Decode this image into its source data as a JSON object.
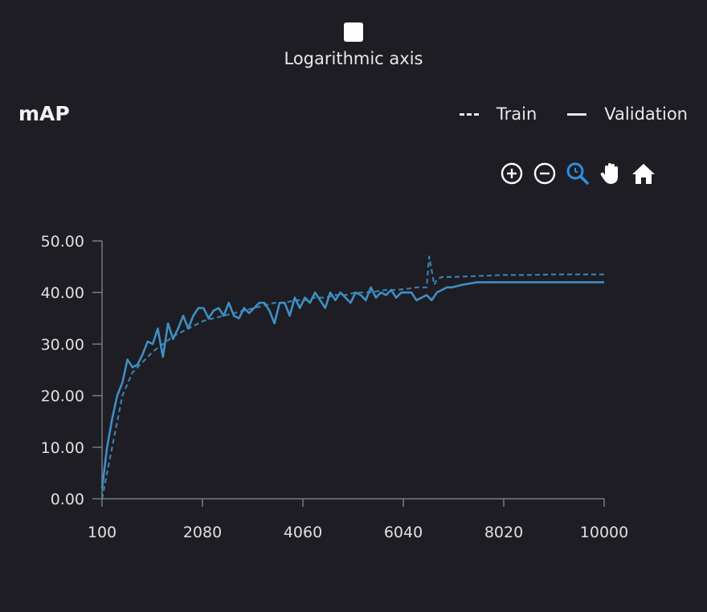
{
  "log_axis": {
    "label": "Logarithmic axis",
    "checked": false
  },
  "title": "mAP",
  "legend": [
    {
      "name": "Train",
      "style": "dashed"
    },
    {
      "name": "Validation",
      "style": "solid"
    }
  ],
  "toolbar": [
    {
      "name": "zoom-in-icon"
    },
    {
      "name": "zoom-out-icon"
    },
    {
      "name": "zoom-select-icon",
      "active": true
    },
    {
      "name": "pan-hand-icon"
    },
    {
      "name": "home-icon"
    }
  ],
  "colors": {
    "background": "#1d1d23",
    "series": "#3f8fc4",
    "active_tool": "#2f8fdf",
    "text": "#e6e6e6",
    "axis": "#7a7a82"
  },
  "chart_data": {
    "type": "line",
    "title": "mAP",
    "xlabel": "",
    "ylabel": "",
    "xlim": [
      100,
      10000
    ],
    "ylim": [
      0,
      50
    ],
    "x_ticks": [
      "100",
      "2080",
      "4060",
      "6040",
      "8020",
      "10000"
    ],
    "x_tick_values": [
      100,
      2080,
      4060,
      6040,
      8020,
      10000
    ],
    "y_ticks": [
      "0.00",
      "10.00",
      "20.00",
      "30.00",
      "40.00",
      "50.00"
    ],
    "y_tick_values": [
      0,
      10,
      20,
      30,
      40,
      50
    ],
    "grid": false,
    "legend_position": "top-right",
    "series": [
      {
        "name": "Train",
        "style": "dashed",
        "x": [
          100,
          300,
          500,
          700,
          900,
          1100,
          1300,
          1500,
          1700,
          1900,
          2100,
          2300,
          2500,
          2700,
          2900,
          3100,
          3300,
          3500,
          3700,
          3900,
          4100,
          4300,
          4500,
          4700,
          4900,
          5100,
          5300,
          5500,
          5700,
          5900,
          6100,
          6300,
          6500,
          6550,
          6650,
          6700,
          6800,
          7000,
          7500,
          8000,
          8500,
          9000,
          9500,
          10000
        ],
        "y": [
          0,
          10,
          20,
          24.5,
          26.5,
          28.5,
          30,
          31.5,
          32.5,
          33.5,
          34.5,
          35,
          35.5,
          36,
          36.5,
          37,
          37.5,
          38,
          38,
          38.5,
          38.5,
          39,
          39,
          39.5,
          39.5,
          40,
          40,
          40.2,
          40.5,
          40.5,
          40.7,
          41,
          41,
          47,
          41.5,
          42.5,
          43,
          43,
          43.2,
          43.4,
          43.4,
          43.5,
          43.5,
          43.5
        ]
      },
      {
        "name": "Validation",
        "style": "solid",
        "x": [
          100,
          200,
          300,
          400,
          500,
          600,
          700,
          800,
          900,
          1000,
          1100,
          1200,
          1300,
          1400,
          1500,
          1600,
          1700,
          1800,
          1900,
          2000,
          2100,
          2200,
          2300,
          2400,
          2500,
          2600,
          2700,
          2800,
          2900,
          3000,
          3100,
          3200,
          3300,
          3400,
          3500,
          3600,
          3700,
          3800,
          3900,
          4000,
          4100,
          4200,
          4300,
          4400,
          4500,
          4600,
          4700,
          4800,
          4900,
          5000,
          5100,
          5200,
          5300,
          5400,
          5500,
          5600,
          5700,
          5800,
          5900,
          6000,
          6100,
          6200,
          6300,
          6400,
          6500,
          6600,
          6700,
          6800,
          6900,
          7000,
          7200,
          7500,
          8000,
          8500,
          9000,
          9500,
          10000
        ],
        "y": [
          2,
          10,
          15.5,
          20,
          22.5,
          27,
          25.5,
          26,
          28,
          30.5,
          30,
          33,
          27.5,
          34,
          31,
          33,
          35.5,
          33,
          35.5,
          37,
          37,
          35,
          36.5,
          37,
          35.5,
          38,
          35.5,
          35,
          37,
          36,
          37,
          38,
          38,
          36.5,
          34,
          38,
          38,
          35.5,
          39,
          37,
          39,
          38,
          40,
          38.5,
          37,
          40,
          38.5,
          40,
          39,
          38,
          40,
          39.5,
          38.5,
          41,
          39,
          40,
          39.5,
          40.5,
          39,
          40,
          40,
          40,
          38.5,
          39,
          39.5,
          38.5,
          40,
          40.5,
          41,
          41,
          41.5,
          42,
          42,
          42,
          42,
          42,
          42
        ]
      }
    ]
  }
}
